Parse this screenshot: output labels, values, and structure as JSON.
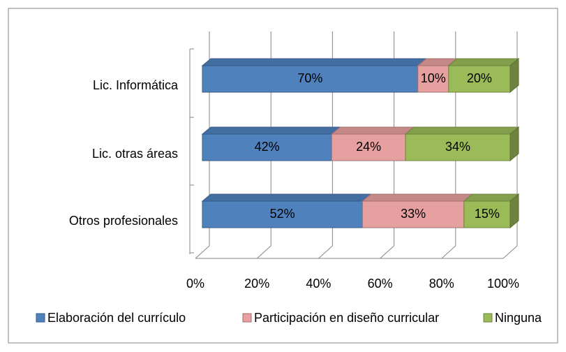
{
  "chart_data": {
    "type": "bar",
    "orientation": "horizontal",
    "stacked": true,
    "three_d": true,
    "categories": [
      "Lic. Informática",
      "Lic. otras áreas",
      "Otros profesionales"
    ],
    "series": [
      {
        "name": "Elaboración del currículo",
        "color": "#4f81bd",
        "values": [
          70,
          42,
          52
        ],
        "value_labels": [
          "70%",
          "42%",
          "52%"
        ]
      },
      {
        "name": "Participación en diseño curricular",
        "color": "#e6a09f",
        "values": [
          10,
          24,
          33
        ],
        "value_labels": [
          "10%",
          "24%",
          "33%"
        ]
      },
      {
        "name": "Ninguna",
        "color": "#9bbb59",
        "values": [
          20,
          34,
          15
        ],
        "value_labels": [
          "20%",
          "34%",
          "15%"
        ]
      }
    ],
    "xlim": [
      0,
      100
    ],
    "xticks": [
      {
        "value": 0,
        "label": "0%"
      },
      {
        "value": 20,
        "label": "20%"
      },
      {
        "value": 40,
        "label": "40%"
      },
      {
        "value": 60,
        "label": "60%"
      },
      {
        "value": 80,
        "label": "80%"
      },
      {
        "value": 100,
        "label": "100%"
      }
    ],
    "grid": true,
    "legend": "bottom"
  }
}
